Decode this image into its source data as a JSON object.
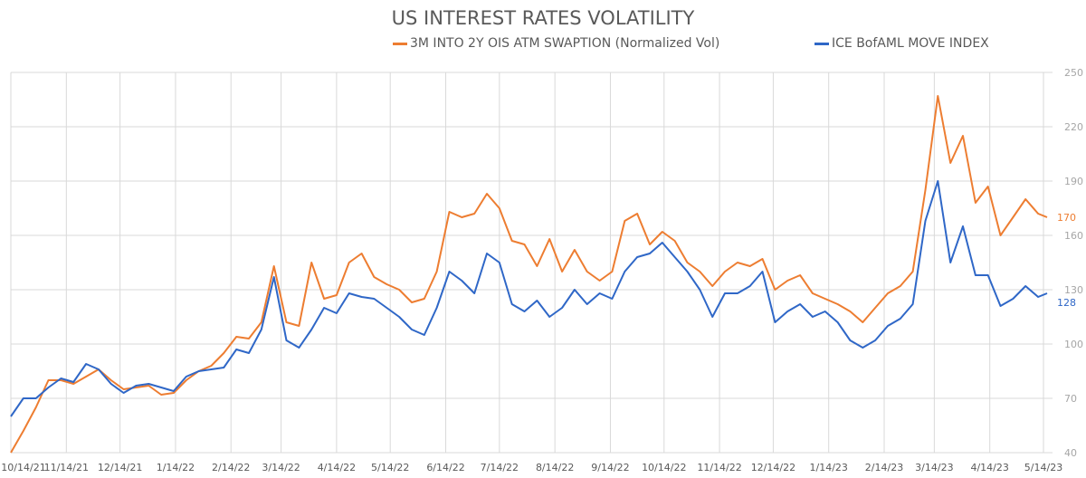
{
  "chart_data": {
    "type": "line",
    "title": "US INTEREST RATES VOLATILITY",
    "xlabel": "",
    "ylabel": "",
    "ylim": [
      40,
      250
    ],
    "y_ticks": [
      40,
      70,
      100,
      130,
      160,
      190,
      220,
      250
    ],
    "y_axis_position": "right",
    "x_ticks": [
      "10/14/21",
      "11/14/21",
      "12/14/21",
      "1/14/22",
      "2/14/22",
      "3/14/22",
      "4/14/22",
      "5/14/22",
      "6/14/22",
      "7/14/22",
      "8/14/22",
      "9/14/22",
      "10/14/22",
      "11/14/22",
      "12/14/22",
      "1/14/23",
      "2/14/23",
      "3/14/23",
      "4/14/23",
      "5/14/23"
    ],
    "grid": true,
    "legend_position": "top",
    "x": [
      "2021-10-14",
      "2021-10-21",
      "2021-10-28",
      "2021-11-04",
      "2021-11-11",
      "2021-11-18",
      "2021-11-25",
      "2021-12-02",
      "2021-12-09",
      "2021-12-16",
      "2021-12-23",
      "2021-12-30",
      "2022-01-06",
      "2022-01-13",
      "2022-01-20",
      "2022-01-27",
      "2022-02-03",
      "2022-02-10",
      "2022-02-17",
      "2022-02-24",
      "2022-03-03",
      "2022-03-10",
      "2022-03-17",
      "2022-03-24",
      "2022-03-31",
      "2022-04-07",
      "2022-04-14",
      "2022-04-21",
      "2022-04-28",
      "2022-05-05",
      "2022-05-12",
      "2022-05-19",
      "2022-05-26",
      "2022-06-02",
      "2022-06-09",
      "2022-06-16",
      "2022-06-23",
      "2022-06-30",
      "2022-07-07",
      "2022-07-14",
      "2022-07-21",
      "2022-07-28",
      "2022-08-04",
      "2022-08-11",
      "2022-08-18",
      "2022-08-25",
      "2022-09-01",
      "2022-09-08",
      "2022-09-15",
      "2022-09-22",
      "2022-09-29",
      "2022-10-06",
      "2022-10-13",
      "2022-10-20",
      "2022-10-27",
      "2022-11-03",
      "2022-11-10",
      "2022-11-17",
      "2022-11-24",
      "2022-12-01",
      "2022-12-08",
      "2022-12-15",
      "2022-12-22",
      "2022-12-29",
      "2023-01-05",
      "2023-01-12",
      "2023-01-19",
      "2023-01-26",
      "2023-02-02",
      "2023-02-09",
      "2023-02-16",
      "2023-02-23",
      "2023-03-02",
      "2023-03-09",
      "2023-03-16",
      "2023-03-23",
      "2023-03-30",
      "2023-04-06",
      "2023-04-13",
      "2023-04-20",
      "2023-04-27",
      "2023-05-04",
      "2023-05-11",
      "2023-05-16"
    ],
    "series": [
      {
        "name": "3M INTO 2Y OIS ATM SWAPTION (Normalized Vol)",
        "color": "#ED7D31",
        "last_label": "170",
        "values": [
          40,
          52,
          65,
          80,
          80,
          78,
          82,
          86,
          80,
          75,
          76,
          77,
          72,
          73,
          80,
          85,
          88,
          95,
          104,
          103,
          112,
          143,
          112,
          110,
          145,
          125,
          127,
          145,
          150,
          137,
          133,
          130,
          123,
          125,
          140,
          173,
          170,
          172,
          183,
          175,
          157,
          155,
          143,
          158,
          140,
          152,
          140,
          135,
          140,
          168,
          172,
          155,
          162,
          157,
          145,
          140,
          132,
          140,
          145,
          143,
          147,
          130,
          135,
          138,
          128,
          125,
          122,
          118,
          112,
          120,
          128,
          132,
          140,
          185,
          237,
          200,
          215,
          178,
          187,
          160,
          170,
          180,
          172,
          170
        ]
      },
      {
        "name": "ICE BofAML MOVE INDEX",
        "color": "#2F67C7",
        "last_label": "128",
        "values": [
          60,
          70,
          70,
          76,
          81,
          79,
          89,
          86,
          78,
          73,
          77,
          78,
          76,
          74,
          82,
          85,
          86,
          87,
          97,
          95,
          108,
          137,
          102,
          98,
          108,
          120,
          117,
          128,
          126,
          125,
          120,
          115,
          108,
          105,
          120,
          140,
          135,
          128,
          150,
          145,
          122,
          118,
          124,
          115,
          120,
          130,
          122,
          128,
          125,
          140,
          148,
          150,
          156,
          148,
          140,
          130,
          115,
          128,
          128,
          132,
          140,
          112,
          118,
          122,
          115,
          118,
          112,
          102,
          98,
          102,
          110,
          114,
          122,
          168,
          190,
          145,
          165,
          138,
          138,
          121,
          125,
          132,
          126,
          128
        ]
      }
    ]
  }
}
